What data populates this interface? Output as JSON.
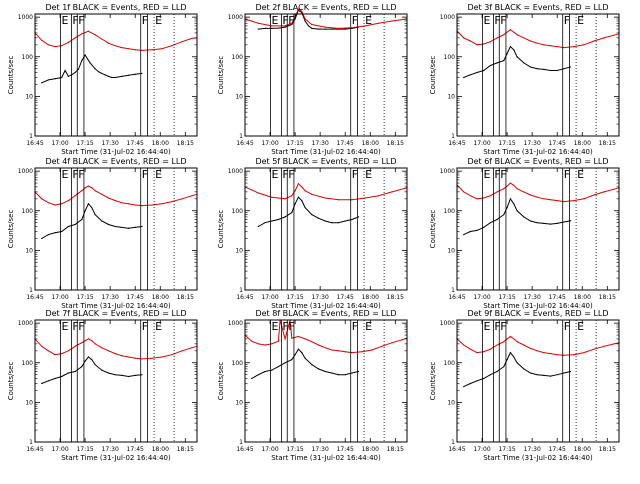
{
  "colors": {
    "events": "#000000",
    "lld": "#e00000",
    "axes": "#000000"
  },
  "shared": {
    "xlabel": "Start Time (31-Jul-02 16:44:40)",
    "ylabel": "Counts/sec",
    "x_ticks": [
      "16:45",
      "17:00",
      "17:15",
      "17:30",
      "17:45",
      "18:00",
      "18:15"
    ],
    "y_ticks": [
      "1",
      "10",
      "100",
      "1000"
    ],
    "y_scale": "log",
    "ylim": [
      1,
      1200
    ],
    "xlim_minutes_after_1645": [
      0,
      97
    ]
  },
  "chart_data": [
    {
      "type": "line",
      "title": "Det 1f BLACK = Events, RED = LLD",
      "series": [
        {
          "color": "black",
          "x": [
            4,
            8,
            12,
            16,
            18,
            20,
            22,
            24,
            26,
            28,
            30,
            33,
            36,
            38,
            40,
            42,
            44,
            46,
            48,
            52,
            56,
            60,
            64
          ],
          "y": [
            22,
            26,
            28,
            30,
            45,
            32,
            35,
            40,
            48,
            80,
            110,
            70,
            50,
            42,
            38,
            35,
            32,
            30,
            30,
            32,
            34,
            36,
            38
          ]
        },
        {
          "color": "red",
          "x": [
            0,
            4,
            8,
            12,
            16,
            20,
            24,
            28,
            32,
            36,
            40,
            44,
            48,
            52,
            56,
            60,
            64,
            70,
            76,
            82,
            88,
            94,
            97
          ],
          "y": [
            400,
            260,
            200,
            180,
            190,
            230,
            300,
            380,
            440,
            360,
            280,
            220,
            190,
            170,
            160,
            150,
            145,
            150,
            160,
            190,
            240,
            290,
            300
          ]
        }
      ]
    },
    {
      "type": "line",
      "title": "Det 2f BLACK = Events, RED = LLD",
      "series": [
        {
          "color": "black",
          "x": [
            8,
            12,
            16,
            20,
            24,
            28,
            30,
            32,
            34,
            36,
            38,
            40,
            44,
            48,
            52,
            56,
            60,
            64,
            68
          ],
          "y": [
            500,
            520,
            520,
            530,
            560,
            650,
            900,
            1500,
            1300,
            800,
            600,
            520,
            500,
            500,
            500,
            500,
            500,
            520,
            560
          ]
        },
        {
          "color": "red",
          "x": [
            0,
            8,
            16,
            24,
            28,
            30,
            32,
            34,
            36,
            40,
            48,
            56,
            64,
            72,
            80,
            88,
            97
          ],
          "y": [
            900,
            700,
            600,
            600,
            700,
            1000,
            1600,
            1400,
            900,
            650,
            560,
            520,
            540,
            600,
            700,
            800,
            900
          ]
        }
      ]
    },
    {
      "type": "line",
      "title": "Det 3f BLACK = Events, RED = LLD",
      "series": [
        {
          "color": "black",
          "x": [
            4,
            8,
            12,
            16,
            20,
            24,
            28,
            30,
            32,
            34,
            36,
            40,
            44,
            48,
            52,
            56,
            60,
            64,
            68
          ],
          "y": [
            30,
            35,
            40,
            45,
            60,
            70,
            80,
            120,
            180,
            150,
            100,
            70,
            55,
            50,
            48,
            45,
            45,
            50,
            55
          ]
        },
        {
          "color": "red",
          "x": [
            0,
            4,
            8,
            12,
            16,
            20,
            24,
            28,
            30,
            32,
            34,
            36,
            40,
            44,
            48,
            52,
            56,
            60,
            64,
            70,
            76,
            82,
            88,
            94,
            97
          ],
          "y": [
            450,
            300,
            250,
            200,
            210,
            240,
            300,
            360,
            420,
            480,
            420,
            360,
            300,
            250,
            220,
            200,
            190,
            180,
            170,
            180,
            200,
            250,
            300,
            350,
            380
          ]
        }
      ]
    },
    {
      "type": "line",
      "title": "Det 4f BLACK = Events, RED = LLD",
      "series": [
        {
          "color": "black",
          "x": [
            4,
            8,
            12,
            16,
            20,
            24,
            28,
            30,
            32,
            34,
            36,
            40,
            44,
            48,
            52,
            56,
            60,
            64
          ],
          "y": [
            20,
            25,
            28,
            30,
            40,
            45,
            60,
            100,
            150,
            120,
            80,
            55,
            45,
            40,
            38,
            36,
            38,
            40
          ]
        },
        {
          "color": "red",
          "x": [
            0,
            4,
            8,
            12,
            16,
            20,
            24,
            28,
            30,
            32,
            34,
            36,
            40,
            44,
            48,
            52,
            56,
            60,
            64,
            70,
            76,
            82,
            88,
            94,
            97
          ],
          "y": [
            300,
            200,
            160,
            140,
            150,
            180,
            240,
            320,
            380,
            420,
            380,
            320,
            260,
            210,
            180,
            160,
            150,
            140,
            135,
            140,
            150,
            170,
            200,
            240,
            260
          ]
        }
      ]
    },
    {
      "type": "line",
      "title": "Det 5f BLACK = Events, RED = LLD",
      "series": [
        {
          "color": "black",
          "x": [
            8,
            12,
            16,
            20,
            24,
            28,
            30,
            32,
            34,
            36,
            40,
            44,
            48,
            52,
            56,
            60,
            64,
            68
          ],
          "y": [
            40,
            50,
            55,
            60,
            70,
            90,
            150,
            220,
            180,
            120,
            80,
            65,
            55,
            50,
            50,
            55,
            60,
            70
          ]
        },
        {
          "color": "red",
          "x": [
            0,
            8,
            16,
            24,
            28,
            30,
            32,
            34,
            36,
            40,
            48,
            56,
            64,
            72,
            80,
            88,
            97
          ],
          "y": [
            400,
            280,
            220,
            200,
            240,
            320,
            480,
            400,
            320,
            260,
            210,
            190,
            190,
            210,
            240,
            300,
            380
          ]
        }
      ]
    },
    {
      "type": "line",
      "title": "Det 6f BLACK = Events, RED = LLD",
      "series": [
        {
          "color": "black",
          "x": [
            4,
            8,
            12,
            16,
            20,
            24,
            28,
            30,
            32,
            34,
            36,
            40,
            44,
            48,
            52,
            56,
            60,
            64,
            68
          ],
          "y": [
            25,
            30,
            32,
            38,
            50,
            60,
            80,
            120,
            200,
            150,
            100,
            70,
            55,
            50,
            48,
            46,
            48,
            52,
            56
          ]
        },
        {
          "color": "red",
          "x": [
            0,
            4,
            8,
            12,
            16,
            20,
            24,
            28,
            30,
            32,
            34,
            36,
            40,
            44,
            48,
            52,
            56,
            60,
            64,
            70,
            76,
            82,
            88,
            94,
            97
          ],
          "y": [
            450,
            300,
            240,
            200,
            210,
            240,
            300,
            360,
            420,
            500,
            440,
            360,
            300,
            250,
            220,
            200,
            190,
            180,
            170,
            180,
            200,
            250,
            300,
            350,
            380
          ]
        }
      ]
    },
    {
      "type": "line",
      "title": "Det 7f BLACK = Events, RED = LLD",
      "series": [
        {
          "color": "black",
          "x": [
            4,
            8,
            12,
            16,
            20,
            24,
            28,
            30,
            32,
            34,
            36,
            40,
            44,
            48,
            52,
            56,
            60,
            64
          ],
          "y": [
            30,
            35,
            40,
            45,
            55,
            60,
            80,
            110,
            140,
            120,
            90,
            65,
            55,
            50,
            48,
            45,
            48,
            50
          ]
        },
        {
          "color": "red",
          "x": [
            0,
            4,
            8,
            12,
            16,
            20,
            24,
            28,
            30,
            32,
            34,
            36,
            40,
            44,
            48,
            52,
            56,
            60,
            64,
            70,
            76,
            82,
            88,
            94,
            97
          ],
          "y": [
            400,
            260,
            200,
            160,
            170,
            200,
            260,
            320,
            360,
            400,
            360,
            300,
            240,
            200,
            170,
            150,
            140,
            130,
            125,
            130,
            140,
            160,
            200,
            240,
            260
          ]
        }
      ]
    },
    {
      "type": "line",
      "title": "Det 8f BLACK = Events, RED = LLD",
      "series": [
        {
          "color": "black",
          "x": [
            4,
            8,
            12,
            16,
            20,
            24,
            28,
            30,
            32,
            34,
            36,
            40,
            44,
            48,
            52,
            56,
            60,
            64,
            68
          ],
          "y": [
            40,
            50,
            60,
            65,
            80,
            100,
            120,
            160,
            220,
            180,
            130,
            90,
            70,
            60,
            55,
            50,
            50,
            55,
            60
          ]
        },
        {
          "color": "red",
          "x": [
            0,
            4,
            8,
            12,
            16,
            20,
            21,
            24,
            27,
            28,
            32,
            36,
            40,
            44,
            48,
            52,
            56,
            60,
            64,
            70,
            76,
            82,
            88,
            94,
            97
          ],
          "y": [
            500,
            350,
            300,
            280,
            300,
            350,
            1200,
            400,
            1200,
            420,
            460,
            400,
            340,
            280,
            240,
            210,
            200,
            190,
            180,
            190,
            210,
            260,
            320,
            380,
            420
          ]
        }
      ]
    },
    {
      "type": "line",
      "title": "Det 9f BLACK = Events, RED = LLD",
      "series": [
        {
          "color": "black",
          "x": [
            4,
            8,
            12,
            16,
            20,
            24,
            28,
            30,
            32,
            34,
            36,
            40,
            44,
            48,
            52,
            56,
            60,
            64,
            68
          ],
          "y": [
            25,
            30,
            35,
            40,
            50,
            60,
            80,
            120,
            180,
            140,
            100,
            70,
            55,
            50,
            48,
            46,
            50,
            55,
            60
          ]
        },
        {
          "color": "red",
          "x": [
            0,
            4,
            8,
            12,
            16,
            20,
            24,
            28,
            30,
            32,
            34,
            36,
            40,
            44,
            48,
            52,
            56,
            60,
            64,
            70,
            76,
            82,
            88,
            94,
            97
          ],
          "y": [
            400,
            280,
            220,
            180,
            190,
            220,
            280,
            340,
            400,
            460,
            400,
            340,
            280,
            230,
            200,
            180,
            170,
            160,
            155,
            160,
            180,
            220,
            260,
            300,
            320
          ]
        }
      ]
    }
  ]
}
